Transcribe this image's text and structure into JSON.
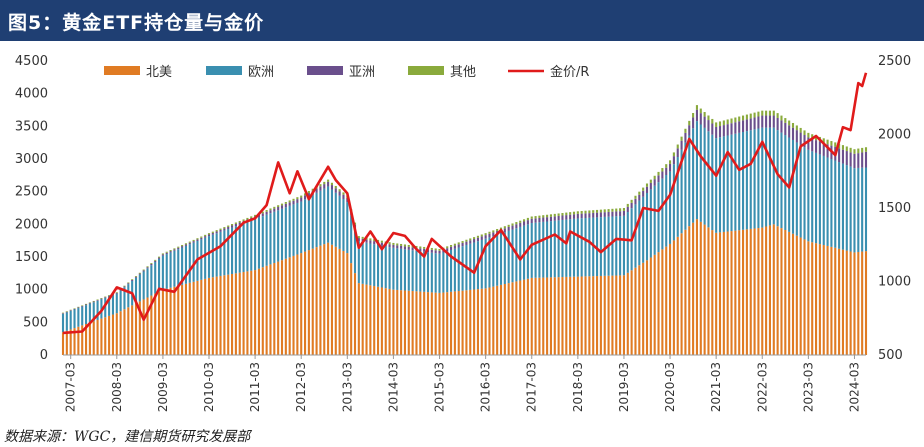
{
  "header": {
    "title": "图5：黄金ETF持仓量与金价"
  },
  "footer": {
    "source": "数据来源：WGC，建信期货研究发展部"
  },
  "colors": {
    "title_bar": "#1f3f73",
    "north_america": "#e07b23",
    "europe": "#3a8fb0",
    "asia": "#6a4f8c",
    "other": "#8aaa3c",
    "gold_price": "#e01b1b"
  },
  "chart_data": {
    "type": "bar",
    "stacked": true,
    "x_tick_labels": [
      "2007-03",
      "2008-03",
      "2009-03",
      "2010-03",
      "2011-03",
      "2012-03",
      "2013-03",
      "2014-03",
      "2015-03",
      "2016-03",
      "2017-03",
      "2018-03",
      "2019-03",
      "2020-03",
      "2021-03",
      "2022-03",
      "2023-03",
      "2024-03"
    ],
    "x_range": [
      "2007-01",
      "2024-06"
    ],
    "left_axis": {
      "ylim": [
        0,
        4500
      ],
      "ticks": [
        0,
        500,
        1000,
        1500,
        2000,
        2500,
        3000,
        3500,
        4000,
        4500
      ]
    },
    "right_axis": {
      "ylim": [
        500,
        2500
      ],
      "ticks": [
        500,
        1000,
        1500,
        2000,
        2500
      ]
    },
    "grid": false,
    "legend_position": "top",
    "legend": [
      "北美",
      "欧洲",
      "亚洲",
      "其他",
      "金价/R"
    ],
    "bar_series": [
      {
        "name": "北美",
        "anchors": [
          {
            "date": "2007-01",
            "value": 350
          },
          {
            "date": "2008-03",
            "value": 640
          },
          {
            "date": "2009-03",
            "value": 1000
          },
          {
            "date": "2010-03",
            "value": 1180
          },
          {
            "date": "2011-03",
            "value": 1300
          },
          {
            "date": "2012-03",
            "value": 1560
          },
          {
            "date": "2012-10",
            "value": 1720
          },
          {
            "date": "2013-03",
            "value": 1560
          },
          {
            "date": "2013-06",
            "value": 1100
          },
          {
            "date": "2014-03",
            "value": 1000
          },
          {
            "date": "2015-03",
            "value": 950
          },
          {
            "date": "2016-03",
            "value": 1020
          },
          {
            "date": "2017-03",
            "value": 1180
          },
          {
            "date": "2018-03",
            "value": 1200
          },
          {
            "date": "2019-03",
            "value": 1220
          },
          {
            "date": "2019-09",
            "value": 1450
          },
          {
            "date": "2020-03",
            "value": 1700
          },
          {
            "date": "2020-10",
            "value": 2080
          },
          {
            "date": "2021-03",
            "value": 1870
          },
          {
            "date": "2022-03",
            "value": 1950
          },
          {
            "date": "2022-06",
            "value": 2000
          },
          {
            "date": "2023-03",
            "value": 1740
          },
          {
            "date": "2024-03",
            "value": 1570
          },
          {
            "date": "2024-06",
            "value": 1590
          }
        ]
      },
      {
        "name": "欧洲",
        "anchors": [
          {
            "date": "2007-01",
            "value": 280
          },
          {
            "date": "2008-03",
            "value": 300
          },
          {
            "date": "2009-03",
            "value": 520
          },
          {
            "date": "2010-03",
            "value": 640
          },
          {
            "date": "2011-03",
            "value": 780
          },
          {
            "date": "2012-03",
            "value": 790
          },
          {
            "date": "2012-10",
            "value": 860
          },
          {
            "date": "2013-03",
            "value": 780
          },
          {
            "date": "2013-06",
            "value": 640
          },
          {
            "date": "2014-03",
            "value": 640
          },
          {
            "date": "2015-03",
            "value": 600
          },
          {
            "date": "2016-03",
            "value": 760
          },
          {
            "date": "2017-03",
            "value": 840
          },
          {
            "date": "2018-03",
            "value": 890
          },
          {
            "date": "2019-03",
            "value": 910
          },
          {
            "date": "2019-09",
            "value": 1030
          },
          {
            "date": "2020-03",
            "value": 1110
          },
          {
            "date": "2020-10",
            "value": 1500
          },
          {
            "date": "2021-03",
            "value": 1450
          },
          {
            "date": "2022-03",
            "value": 1530
          },
          {
            "date": "2022-06",
            "value": 1480
          },
          {
            "date": "2023-03",
            "value": 1400
          },
          {
            "date": "2024-03",
            "value": 1290
          },
          {
            "date": "2024-06",
            "value": 1280
          }
        ]
      },
      {
        "name": "亚洲",
        "anchors": [
          {
            "date": "2007-01",
            "value": 10
          },
          {
            "date": "2008-03",
            "value": 12
          },
          {
            "date": "2009-03",
            "value": 20
          },
          {
            "date": "2010-03",
            "value": 25
          },
          {
            "date": "2011-03",
            "value": 40
          },
          {
            "date": "2012-03",
            "value": 60
          },
          {
            "date": "2012-10",
            "value": 70
          },
          {
            "date": "2013-03",
            "value": 65
          },
          {
            "date": "2013-06",
            "value": 50
          },
          {
            "date": "2014-03",
            "value": 45
          },
          {
            "date": "2015-03",
            "value": 45
          },
          {
            "date": "2016-03",
            "value": 55
          },
          {
            "date": "2017-03",
            "value": 65
          },
          {
            "date": "2018-03",
            "value": 70
          },
          {
            "date": "2019-03",
            "value": 75
          },
          {
            "date": "2019-09",
            "value": 95
          },
          {
            "date": "2020-03",
            "value": 115
          },
          {
            "date": "2020-10",
            "value": 175
          },
          {
            "date": "2021-03",
            "value": 170
          },
          {
            "date": "2022-03",
            "value": 185
          },
          {
            "date": "2022-06",
            "value": 185
          },
          {
            "date": "2023-03",
            "value": 190
          },
          {
            "date": "2024-03",
            "value": 220
          },
          {
            "date": "2024-06",
            "value": 240
          }
        ]
      },
      {
        "name": "其他",
        "anchors": [
          {
            "date": "2007-01",
            "value": 8
          },
          {
            "date": "2008-03",
            "value": 10
          },
          {
            "date": "2009-03",
            "value": 15
          },
          {
            "date": "2010-03",
            "value": 20
          },
          {
            "date": "2011-03",
            "value": 25
          },
          {
            "date": "2012-03",
            "value": 30
          },
          {
            "date": "2012-10",
            "value": 35
          },
          {
            "date": "2013-03",
            "value": 35
          },
          {
            "date": "2013-06",
            "value": 30
          },
          {
            "date": "2014-03",
            "value": 30
          },
          {
            "date": "2015-03",
            "value": 28
          },
          {
            "date": "2016-03",
            "value": 30
          },
          {
            "date": "2017-03",
            "value": 35
          },
          {
            "date": "2018-03",
            "value": 40
          },
          {
            "date": "2019-03",
            "value": 45
          },
          {
            "date": "2019-09",
            "value": 50
          },
          {
            "date": "2020-03",
            "value": 55
          },
          {
            "date": "2020-10",
            "value": 70
          },
          {
            "date": "2021-03",
            "value": 70
          },
          {
            "date": "2022-03",
            "value": 75
          },
          {
            "date": "2022-06",
            "value": 75
          },
          {
            "date": "2023-03",
            "value": 70
          },
          {
            "date": "2024-03",
            "value": 70
          },
          {
            "date": "2024-06",
            "value": 70
          }
        ]
      }
    ],
    "line_series": {
      "name": "金价/R",
      "axis": "right",
      "points": [
        {
          "date": "2007-01",
          "value": 650
        },
        {
          "date": "2007-06",
          "value": 660
        },
        {
          "date": "2007-11",
          "value": 800
        },
        {
          "date": "2008-03",
          "value": 960
        },
        {
          "date": "2008-07",
          "value": 920
        },
        {
          "date": "2008-10",
          "value": 740
        },
        {
          "date": "2009-02",
          "value": 950
        },
        {
          "date": "2009-06",
          "value": 930
        },
        {
          "date": "2009-12",
          "value": 1150
        },
        {
          "date": "2010-06",
          "value": 1240
        },
        {
          "date": "2010-12",
          "value": 1400
        },
        {
          "date": "2011-03",
          "value": 1430
        },
        {
          "date": "2011-06",
          "value": 1520
        },
        {
          "date": "2011-09",
          "value": 1810
        },
        {
          "date": "2011-12",
          "value": 1600
        },
        {
          "date": "2012-02",
          "value": 1750
        },
        {
          "date": "2012-05",
          "value": 1560
        },
        {
          "date": "2012-10",
          "value": 1780
        },
        {
          "date": "2012-12",
          "value": 1690
        },
        {
          "date": "2013-03",
          "value": 1600
        },
        {
          "date": "2013-06",
          "value": 1230
        },
        {
          "date": "2013-09",
          "value": 1340
        },
        {
          "date": "2013-12",
          "value": 1220
        },
        {
          "date": "2014-03",
          "value": 1330
        },
        {
          "date": "2014-06",
          "value": 1310
        },
        {
          "date": "2014-09",
          "value": 1220
        },
        {
          "date": "2014-11",
          "value": 1170
        },
        {
          "date": "2015-01",
          "value": 1290
        },
        {
          "date": "2015-06",
          "value": 1170
        },
        {
          "date": "2015-12",
          "value": 1060
        },
        {
          "date": "2016-03",
          "value": 1240
        },
        {
          "date": "2016-07",
          "value": 1350
        },
        {
          "date": "2016-12",
          "value": 1150
        },
        {
          "date": "2017-03",
          "value": 1250
        },
        {
          "date": "2017-09",
          "value": 1320
        },
        {
          "date": "2017-12",
          "value": 1260
        },
        {
          "date": "2018-01",
          "value": 1340
        },
        {
          "date": "2018-06",
          "value": 1270
        },
        {
          "date": "2018-09",
          "value": 1200
        },
        {
          "date": "2019-01",
          "value": 1290
        },
        {
          "date": "2019-05",
          "value": 1280
        },
        {
          "date": "2019-08",
          "value": 1500
        },
        {
          "date": "2019-12",
          "value": 1480
        },
        {
          "date": "2020-03",
          "value": 1590
        },
        {
          "date": "2020-08",
          "value": 1970
        },
        {
          "date": "2020-11",
          "value": 1850
        },
        {
          "date": "2021-03",
          "value": 1720
        },
        {
          "date": "2021-06",
          "value": 1880
        },
        {
          "date": "2021-09",
          "value": 1760
        },
        {
          "date": "2021-12",
          "value": 1800
        },
        {
          "date": "2022-03",
          "value": 1950
        },
        {
          "date": "2022-07",
          "value": 1730
        },
        {
          "date": "2022-10",
          "value": 1640
        },
        {
          "date": "2023-01",
          "value": 1920
        },
        {
          "date": "2023-05",
          "value": 1990
        },
        {
          "date": "2023-10",
          "value": 1860
        },
        {
          "date": "2023-12",
          "value": 2050
        },
        {
          "date": "2024-02",
          "value": 2030
        },
        {
          "date": "2024-04",
          "value": 2350
        },
        {
          "date": "2024-05",
          "value": 2330
        },
        {
          "date": "2024-06",
          "value": 2420
        }
      ]
    }
  }
}
